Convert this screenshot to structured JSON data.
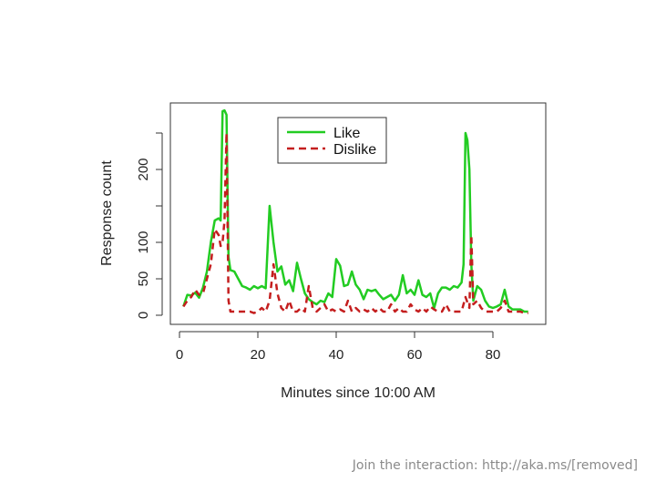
{
  "chart_data": {
    "type": "line",
    "title": "",
    "xlabel": "Minutes since 10:00 AM",
    "ylabel": "Response count",
    "xlim": [
      0,
      92
    ],
    "ylim": [
      0,
      280
    ],
    "xticks": [
      "0",
      "20",
      "40",
      "60",
      "80"
    ],
    "xtick_values": [
      0,
      20,
      40,
      60,
      80
    ],
    "yticks": [
      "0",
      "50",
      "100",
      "200"
    ],
    "ytick_values": [
      0,
      50,
      100,
      200
    ],
    "ytick_marks": [
      0,
      50,
      100,
      150,
      200,
      250
    ],
    "grid": false,
    "legend_position": "top-center",
    "colors": {
      "like": "#22cc22",
      "dislike": "#c41e1e"
    },
    "series": [
      {
        "name": "Like",
        "style": "solid",
        "points": [
          [
            1,
            12
          ],
          [
            2,
            28
          ],
          [
            3,
            27
          ],
          [
            4,
            31
          ],
          [
            5,
            24
          ],
          [
            6,
            38
          ],
          [
            7,
            60
          ],
          [
            8,
            100
          ],
          [
            9,
            130
          ],
          [
            10,
            133
          ],
          [
            10.5,
            130
          ],
          [
            11,
            280
          ],
          [
            11.5,
            281
          ],
          [
            12,
            275
          ],
          [
            12.5,
            80
          ],
          [
            13,
            62
          ],
          [
            14,
            60
          ],
          [
            15,
            50
          ],
          [
            16,
            40
          ],
          [
            17,
            38
          ],
          [
            18,
            35
          ],
          [
            19,
            40
          ],
          [
            20,
            37
          ],
          [
            21,
            40
          ],
          [
            22,
            37
          ],
          [
            23,
            150
          ],
          [
            24,
            100
          ],
          [
            25,
            60
          ],
          [
            26,
            67
          ],
          [
            27,
            42
          ],
          [
            28,
            48
          ],
          [
            29,
            33
          ],
          [
            30,
            72
          ],
          [
            31,
            50
          ],
          [
            32,
            30
          ],
          [
            33,
            22
          ],
          [
            34,
            18
          ],
          [
            35,
            15
          ],
          [
            36,
            20
          ],
          [
            37,
            18
          ],
          [
            38,
            30
          ],
          [
            39,
            25
          ],
          [
            40,
            77
          ],
          [
            41,
            68
          ],
          [
            42,
            40
          ],
          [
            43,
            42
          ],
          [
            44,
            60
          ],
          [
            45,
            42
          ],
          [
            46,
            35
          ],
          [
            47,
            22
          ],
          [
            48,
            35
          ],
          [
            49,
            33
          ],
          [
            50,
            35
          ],
          [
            51,
            28
          ],
          [
            52,
            22
          ],
          [
            53,
            25
          ],
          [
            54,
            28
          ],
          [
            55,
            20
          ],
          [
            56,
            28
          ],
          [
            57,
            55
          ],
          [
            58,
            30
          ],
          [
            59,
            35
          ],
          [
            60,
            28
          ],
          [
            61,
            48
          ],
          [
            62,
            28
          ],
          [
            63,
            25
          ],
          [
            64,
            30
          ],
          [
            65,
            10
          ],
          [
            66,
            30
          ],
          [
            67,
            38
          ],
          [
            68,
            38
          ],
          [
            69,
            35
          ],
          [
            70,
            40
          ],
          [
            71,
            38
          ],
          [
            72,
            45
          ],
          [
            72.5,
            70
          ],
          [
            73,
            250
          ],
          [
            73.5,
            240
          ],
          [
            74,
            200
          ],
          [
            74.5,
            70
          ],
          [
            75,
            20
          ],
          [
            76,
            40
          ],
          [
            77,
            35
          ],
          [
            78,
            20
          ],
          [
            79,
            12
          ],
          [
            80,
            10
          ],
          [
            81,
            12
          ],
          [
            82,
            15
          ],
          [
            83,
            35
          ],
          [
            84,
            12
          ],
          [
            85,
            8
          ],
          [
            86,
            8
          ],
          [
            87,
            8
          ],
          [
            88,
            5
          ],
          [
            89,
            5
          ]
        ]
      },
      {
        "name": "Dislike",
        "style": "dashed",
        "points": [
          [
            1,
            12
          ],
          [
            2,
            20
          ],
          [
            3,
            25
          ],
          [
            4,
            35
          ],
          [
            5,
            28
          ],
          [
            6,
            30
          ],
          [
            7,
            50
          ],
          [
            8,
            70
          ],
          [
            9,
            118
          ],
          [
            10,
            110
          ],
          [
            10.5,
            95
          ],
          [
            11,
            100
          ],
          [
            11.5,
            130
          ],
          [
            12,
            250
          ],
          [
            12.5,
            20
          ],
          [
            13,
            5
          ],
          [
            14,
            5
          ],
          [
            15,
            5
          ],
          [
            16,
            5
          ],
          [
            17,
            5
          ],
          [
            18,
            5
          ],
          [
            19,
            3
          ],
          [
            20,
            5
          ],
          [
            21,
            10
          ],
          [
            22,
            5
          ],
          [
            23,
            20
          ],
          [
            24,
            70
          ],
          [
            25,
            30
          ],
          [
            26,
            10
          ],
          [
            27,
            5
          ],
          [
            28,
            20
          ],
          [
            29,
            5
          ],
          [
            30,
            5
          ],
          [
            31,
            10
          ],
          [
            32,
            5
          ],
          [
            33,
            40
          ],
          [
            34,
            10
          ],
          [
            35,
            5
          ],
          [
            36,
            10
          ],
          [
            37,
            15
          ],
          [
            38,
            5
          ],
          [
            39,
            8
          ],
          [
            40,
            5
          ],
          [
            41,
            8
          ],
          [
            42,
            5
          ],
          [
            43,
            20
          ],
          [
            44,
            5
          ],
          [
            45,
            10
          ],
          [
            46,
            5
          ],
          [
            47,
            8
          ],
          [
            48,
            5
          ],
          [
            49,
            10
          ],
          [
            50,
            5
          ],
          [
            51,
            10
          ],
          [
            52,
            5
          ],
          [
            53,
            5
          ],
          [
            54,
            15
          ],
          [
            55,
            5
          ],
          [
            56,
            10
          ],
          [
            57,
            5
          ],
          [
            58,
            5
          ],
          [
            59,
            15
          ],
          [
            60,
            8
          ],
          [
            61,
            5
          ],
          [
            62,
            10
          ],
          [
            63,
            5
          ],
          [
            64,
            12
          ],
          [
            65,
            8
          ],
          [
            66,
            5
          ],
          [
            67,
            5
          ],
          [
            68,
            15
          ],
          [
            69,
            5
          ],
          [
            70,
            5
          ],
          [
            71,
            5
          ],
          [
            72,
            5
          ],
          [
            73,
            25
          ],
          [
            74,
            10
          ],
          [
            74.5,
            110
          ],
          [
            75,
            15
          ],
          [
            76,
            20
          ],
          [
            77,
            10
          ],
          [
            78,
            5
          ],
          [
            79,
            5
          ],
          [
            80,
            5
          ],
          [
            81,
            5
          ],
          [
            82,
            10
          ],
          [
            83,
            20
          ],
          [
            84,
            5
          ],
          [
            85,
            5
          ],
          [
            86,
            5
          ],
          [
            87,
            5
          ],
          [
            88,
            3
          ],
          [
            89,
            3
          ]
        ]
      }
    ]
  },
  "footer": {
    "text": "Join the interaction: http://aka.ms/[removed]"
  }
}
